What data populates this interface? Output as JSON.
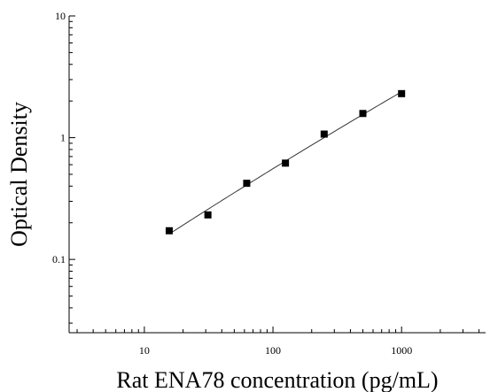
{
  "chart_data": {
    "type": "scatter",
    "title": "",
    "xlabel": "Rat ENA78 concentration (pg/mL)",
    "ylabel": "Optical Density",
    "xscale": "log",
    "yscale": "log",
    "xlim": [
      2.6,
      4500
    ],
    "ylim": [
      0.025,
      10
    ],
    "x_ticks": [
      10,
      100,
      1000
    ],
    "x_tick_labels": [
      "10",
      "100",
      "1000"
    ],
    "y_ticks": [
      0.1,
      1,
      10
    ],
    "y_tick_labels": [
      "0.1",
      "1",
      "10"
    ],
    "grid": false,
    "legend": "none",
    "fit_line": true,
    "series": [
      {
        "x": [
          15.6,
          31.2,
          62.5,
          125,
          250,
          500,
          1000
        ],
        "y": [
          0.172,
          0.232,
          0.422,
          0.618,
          1.07,
          1.58,
          2.3
        ]
      }
    ],
    "colors": {
      "point": "#000000",
      "line": "#333333",
      "axis": "#000000"
    }
  }
}
